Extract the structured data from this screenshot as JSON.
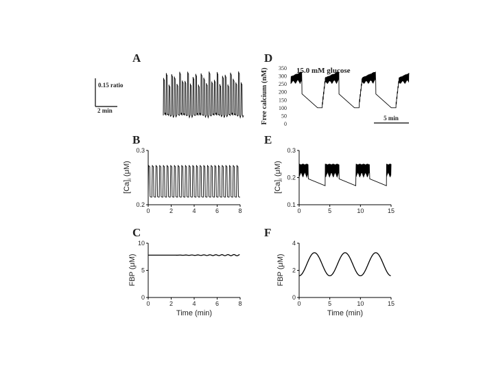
{
  "figure": {
    "panels": {
      "A": {
        "letter": "A",
        "scalebar_y_label": "0.15 ratio",
        "scalebar_x_label": "2 min"
      },
      "B": {
        "letter": "B"
      },
      "C": {
        "letter": "C"
      },
      "D": {
        "letter": "D"
      },
      "E": {
        "letter": "E"
      },
      "F": {
        "letter": "F"
      }
    }
  },
  "chart_data": [
    {
      "panel": "A",
      "type": "line",
      "title": "",
      "xlabel": "",
      "ylabel": "",
      "x_range": [
        0,
        12
      ],
      "y_range": [
        0,
        1
      ],
      "series": [
        {
          "shape": "fast-oscillation",
          "period_min": 0.4,
          "baseline": 0.15,
          "peak": 0.95
        }
      ]
    },
    {
      "panel": "D",
      "type": "line",
      "title": "15.0 mM glucose",
      "ylabel": "Free calcium (nM)",
      "yticks": [
        0,
        50,
        100,
        150,
        200,
        250,
        300,
        350
      ],
      "y_range": [
        0,
        350
      ],
      "x_range": [
        0,
        16
      ],
      "scalebar_x_label": "5 min",
      "series": [
        {
          "shape": "compound-bursting",
          "slow_period_min": 5,
          "baseline": 100,
          "plateau_peak": 250,
          "spike_peak": 330
        }
      ]
    },
    {
      "panel": "B",
      "type": "line",
      "xlabel": "",
      "ylabel": "[Ca]i (μM)",
      "ylabel_main": "[Ca]",
      "ylabel_sub": "i",
      "ylabel_unit": " (μM)",
      "x_range": [
        0,
        8
      ],
      "y_range": [
        0.2,
        0.3
      ],
      "xticks": [
        0,
        2,
        4,
        6,
        8
      ],
      "yticks": [
        0.2,
        0.3
      ],
      "series": [
        {
          "shape": "fast-oscillation",
          "period_min": 0.32,
          "baseline": 0.214,
          "peak": 0.273
        }
      ]
    },
    {
      "panel": "E",
      "type": "line",
      "xlabel": "",
      "ylabel": "[Ca]i (μM)",
      "ylabel_main": "[Ca]",
      "ylabel_sub": "i",
      "ylabel_unit": " (μM)",
      "x_range": [
        0,
        15
      ],
      "y_range": [
        0.1,
        0.3
      ],
      "xticks": [
        0,
        5,
        10,
        15
      ],
      "yticks": [
        0.1,
        0.2,
        0.3
      ],
      "series": [
        {
          "shape": "compound-bursting",
          "slow_period_min": 5,
          "baseline": 0.17,
          "spike_peak": 0.255
        }
      ]
    },
    {
      "panel": "C",
      "type": "line",
      "xlabel": "Time (min)",
      "ylabel": "FBP (μM)",
      "x_range": [
        0,
        8
      ],
      "y_range": [
        0,
        10
      ],
      "xticks": [
        0,
        2,
        4,
        6,
        8
      ],
      "yticks": [
        0,
        5,
        10
      ],
      "series": [
        {
          "shape": "flat",
          "mean": 7.8,
          "ripple": 0.12
        }
      ]
    },
    {
      "panel": "F",
      "type": "line",
      "xlabel": "Time (min)",
      "ylabel": "FBP (μM)",
      "x_range": [
        0,
        15
      ],
      "y_range": [
        0,
        4
      ],
      "xticks": [
        0,
        5,
        10,
        15
      ],
      "yticks": [
        0,
        2,
        4
      ],
      "series": [
        {
          "shape": "slow-oscillation",
          "period_min": 5,
          "min": 1.6,
          "max": 3.3
        }
      ]
    }
  ]
}
